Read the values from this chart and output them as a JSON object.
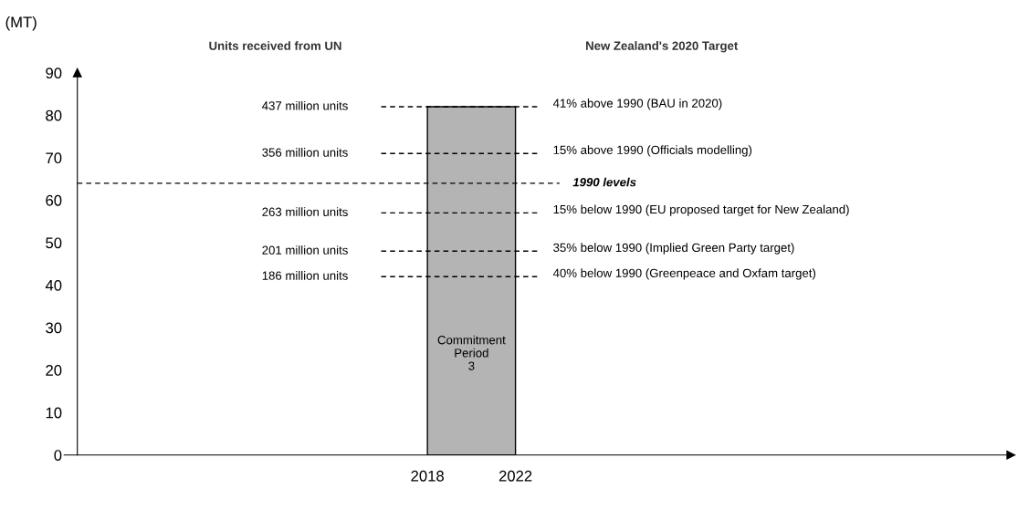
{
  "chart_data": {
    "type": "histogram",
    "bins": [
      2018,
      2022
    ],
    "values": [
      82
    ],
    "color": "#b4b4b4",
    "ylabel": "(MT)",
    "xlim": [
      2001.5,
      2044.5
    ],
    "xticks": [
      2018,
      2022
    ],
    "ylim": [
      0,
      90
    ],
    "yticks": [
      0,
      10,
      20,
      30,
      40,
      50,
      60,
      70,
      80,
      90
    ],
    "grid": false,
    "ref_lines": [
      {
        "axis": "y",
        "value": 82,
        "label": "41% above 1990 (BAU in 2020)",
        "line_style": "dashed",
        "color": "#000000"
      },
      {
        "axis": "y",
        "value": 71,
        "label": "15% above 1990 (Officials modelling)",
        "line_style": "dashed",
        "color": "#000000"
      },
      {
        "axis": "y",
        "value": 64,
        "label": "1990 levels",
        "line_style": "dashed",
        "color": "#000000"
      },
      {
        "axis": "y",
        "value": 57,
        "label": "15% below 1990 (EU proposed target for New Zealand)",
        "line_style": "dashed",
        "color": "#000000"
      },
      {
        "axis": "y",
        "value": 48,
        "label": "35% below 1990 (Implied Green Party target)",
        "line_style": "dashed",
        "color": "#000000"
      },
      {
        "axis": "y",
        "value": 42,
        "label": "40% below 1990 (Greenpeace and Oxfam target)",
        "line_style": "dashed",
        "color": "#000000"
      }
    ],
    "annotations": [
      "Units received from UN",
      "New Zealand's 2020 Target",
      "437 million units",
      "356 million units",
      "263 million units",
      "201 million units",
      "186 million units",
      "Commitment\nPeriod\n3"
    ]
  }
}
